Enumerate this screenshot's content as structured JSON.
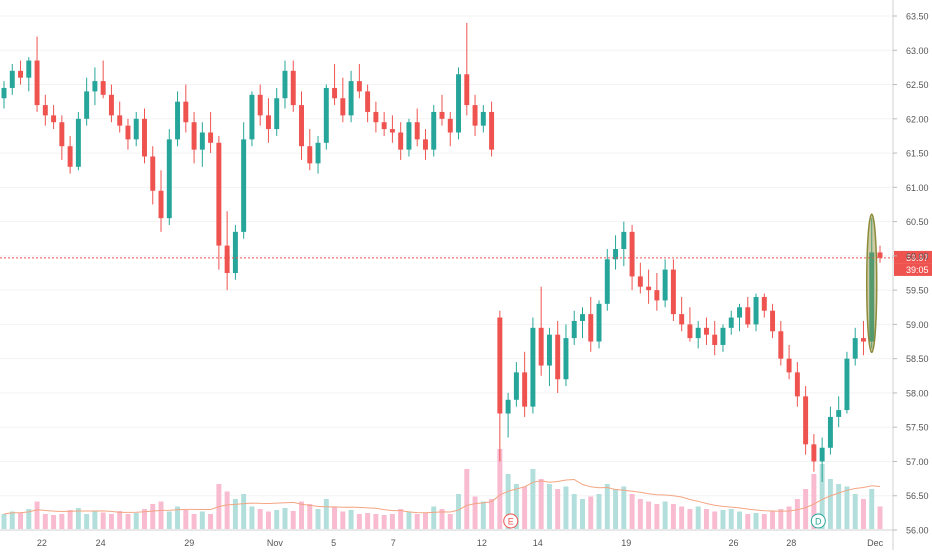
{
  "chart_data": {
    "type": "candlestick",
    "y_axis": {
      "position": "right",
      "ylim": [
        55.8,
        63.7
      ],
      "tick_labels": [
        "56.00",
        "56.50",
        "57.00",
        "57.50",
        "58.00",
        "58.50",
        "59.00",
        "59.50",
        "60.00",
        "60.50",
        "61.00",
        "61.50",
        "62.00",
        "62.50",
        "63.00",
        "63.50"
      ]
    },
    "x_axis": {
      "tick_labels": [
        "22",
        "24",
        "29",
        "Nov",
        "5",
        "7",
        "12",
        "14",
        "19",
        "26",
        "28",
        "Dec"
      ]
    },
    "price_line": {
      "value": 59.97,
      "label": "59.97",
      "countdown": "39:05"
    },
    "event_markers": [
      {
        "letter": "E",
        "near": "12"
      },
      {
        "letter": "D",
        "near": "28"
      }
    ],
    "highlight": "ellipse around the last large bullish candle",
    "colors": {
      "up": "#26a69a",
      "down": "#ef5350",
      "volume_up": "#b2dfdb",
      "volume_down": "#f8bbd0",
      "volume_ma": "#f4a582",
      "price_line": "#ef5350",
      "axis_text": "#555555",
      "highlight": "#8d8b3a"
    },
    "candles": [
      [
        62.3,
        62.55,
        62.15,
        62.45
      ],
      [
        62.45,
        62.8,
        62.35,
        62.7
      ],
      [
        62.7,
        62.85,
        62.5,
        62.6
      ],
      [
        62.6,
        62.9,
        62.4,
        62.85
      ],
      [
        62.85,
        63.2,
        62.1,
        62.2
      ],
      [
        62.2,
        62.35,
        61.9,
        62.05
      ],
      [
        62.05,
        62.2,
        61.85,
        61.95
      ],
      [
        61.95,
        62.05,
        61.4,
        61.6
      ],
      [
        61.6,
        61.75,
        61.2,
        61.3
      ],
      [
        61.3,
        62.1,
        61.25,
        62.0
      ],
      [
        62.0,
        62.6,
        61.9,
        62.4
      ],
      [
        62.4,
        62.75,
        62.2,
        62.55
      ],
      [
        62.55,
        62.85,
        62.3,
        62.35
      ],
      [
        62.35,
        62.5,
        61.95,
        62.05
      ],
      [
        62.05,
        62.25,
        61.8,
        61.9
      ],
      [
        61.9,
        62.0,
        61.55,
        61.7
      ],
      [
        61.7,
        62.1,
        61.6,
        62.0
      ],
      [
        62.0,
        62.15,
        61.35,
        61.45
      ],
      [
        61.45,
        61.6,
        60.75,
        60.95
      ],
      [
        60.95,
        61.25,
        60.35,
        60.55
      ],
      [
        60.55,
        61.85,
        60.45,
        61.7
      ],
      [
        61.7,
        62.4,
        61.6,
        62.25
      ],
      [
        62.25,
        62.5,
        61.8,
        61.95
      ],
      [
        61.95,
        62.1,
        61.35,
        61.55
      ],
      [
        61.55,
        61.95,
        61.3,
        61.8
      ],
      [
        61.8,
        62.1,
        61.5,
        61.65
      ],
      [
        61.65,
        61.75,
        59.8,
        60.15
      ],
      [
        60.15,
        60.65,
        59.5,
        59.75
      ],
      [
        59.75,
        60.45,
        59.65,
        60.35
      ],
      [
        60.35,
        61.95,
        60.25,
        61.7
      ],
      [
        61.7,
        62.4,
        61.6,
        62.35
      ],
      [
        62.35,
        62.5,
        61.9,
        62.05
      ],
      [
        62.05,
        62.3,
        61.65,
        61.85
      ],
      [
        61.85,
        62.45,
        61.75,
        62.3
      ],
      [
        62.3,
        62.85,
        62.15,
        62.7
      ],
      [
        62.7,
        62.85,
        62.1,
        62.2
      ],
      [
        62.2,
        62.4,
        61.4,
        61.6
      ],
      [
        61.6,
        61.85,
        61.25,
        61.35
      ],
      [
        61.35,
        61.75,
        61.2,
        61.65
      ],
      [
        61.65,
        62.5,
        61.55,
        62.45
      ],
      [
        62.45,
        62.8,
        62.2,
        62.3
      ],
      [
        62.3,
        62.6,
        61.95,
        62.05
      ],
      [
        62.05,
        62.7,
        61.95,
        62.55
      ],
      [
        62.55,
        62.8,
        62.3,
        62.4
      ],
      [
        62.4,
        62.5,
        61.95,
        62.1
      ],
      [
        62.1,
        62.25,
        61.8,
        61.95
      ],
      [
        61.95,
        62.1,
        61.75,
        61.85
      ],
      [
        61.85,
        62.05,
        61.65,
        61.8
      ],
      [
        61.8,
        61.95,
        61.4,
        61.55
      ],
      [
        61.55,
        62.0,
        61.45,
        61.95
      ],
      [
        61.95,
        62.15,
        61.6,
        61.7
      ],
      [
        61.7,
        61.85,
        61.4,
        61.55
      ],
      [
        61.55,
        62.2,
        61.45,
        62.1
      ],
      [
        62.1,
        62.35,
        61.9,
        62.0
      ],
      [
        62.0,
        62.1,
        61.6,
        61.8
      ],
      [
        61.8,
        62.75,
        61.7,
        62.65
      ],
      [
        62.65,
        63.4,
        62.05,
        62.2
      ],
      [
        62.2,
        62.35,
        61.75,
        61.9
      ],
      [
        61.9,
        62.2,
        61.8,
        62.1
      ],
      [
        62.1,
        62.25,
        61.45,
        61.55
      ],
      [
        59.1,
        59.2,
        57.0,
        57.7
      ],
      [
        57.7,
        58.0,
        57.35,
        57.9
      ],
      [
        57.9,
        58.45,
        57.8,
        58.3
      ],
      [
        58.3,
        58.6,
        57.65,
        57.8
      ],
      [
        57.8,
        59.1,
        57.7,
        58.95
      ],
      [
        58.95,
        59.55,
        58.25,
        58.4
      ],
      [
        58.4,
        58.95,
        58.1,
        58.85
      ],
      [
        58.85,
        59.05,
        58.0,
        58.2
      ],
      [
        58.2,
        59.0,
        58.1,
        58.8
      ],
      [
        58.8,
        59.2,
        58.7,
        59.05
      ],
      [
        59.05,
        59.25,
        58.8,
        59.15
      ],
      [
        59.15,
        59.4,
        58.6,
        58.75
      ],
      [
        58.75,
        59.35,
        58.65,
        59.3
      ],
      [
        59.3,
        60.1,
        59.2,
        59.95
      ],
      [
        59.95,
        60.3,
        59.8,
        60.1
      ],
      [
        60.1,
        60.5,
        59.85,
        60.35
      ],
      [
        60.35,
        60.45,
        59.5,
        59.7
      ],
      [
        59.7,
        59.9,
        59.45,
        59.55
      ],
      [
        59.55,
        59.8,
        59.3,
        59.5
      ],
      [
        59.5,
        59.75,
        59.2,
        59.35
      ],
      [
        59.35,
        59.95,
        59.25,
        59.8
      ],
      [
        59.8,
        59.95,
        59.05,
        59.15
      ],
      [
        59.15,
        59.4,
        58.9,
        59.0
      ],
      [
        59.0,
        59.25,
        58.75,
        58.8
      ],
      [
        58.8,
        59.05,
        58.65,
        58.95
      ],
      [
        58.95,
        59.1,
        58.7,
        58.85
      ],
      [
        58.85,
        59.05,
        58.55,
        58.7
      ],
      [
        58.7,
        59.0,
        58.6,
        58.95
      ],
      [
        58.95,
        59.2,
        58.85,
        59.1
      ],
      [
        59.1,
        59.3,
        58.9,
        59.25
      ],
      [
        59.25,
        59.4,
        58.95,
        59.0
      ],
      [
        59.0,
        59.45,
        58.9,
        59.4
      ],
      [
        59.4,
        59.45,
        59.1,
        59.2
      ],
      [
        59.2,
        59.3,
        58.8,
        58.9
      ],
      [
        58.9,
        59.05,
        58.4,
        58.5
      ],
      [
        58.5,
        58.7,
        58.2,
        58.3
      ],
      [
        58.3,
        58.45,
        57.8,
        57.95
      ],
      [
        57.95,
        58.1,
        57.1,
        57.25
      ],
      [
        57.25,
        57.4,
        56.85,
        57.0
      ],
      [
        57.0,
        57.35,
        56.7,
        57.2
      ],
      [
        57.2,
        57.8,
        57.1,
        57.65
      ],
      [
        57.65,
        57.95,
        57.5,
        57.75
      ],
      [
        57.75,
        58.6,
        57.7,
        58.5
      ],
      [
        58.5,
        58.95,
        58.4,
        58.8
      ],
      [
        58.8,
        59.05,
        58.55,
        58.75
      ],
      [
        58.75,
        60.55,
        58.65,
        60.05
      ],
      [
        60.05,
        60.15,
        59.9,
        59.97
      ]
    ],
    "volumes": [
      0.3,
      0.35,
      0.32,
      0.4,
      0.55,
      0.3,
      0.28,
      0.3,
      0.38,
      0.42,
      0.3,
      0.35,
      0.33,
      0.3,
      0.36,
      0.3,
      0.32,
      0.4,
      0.5,
      0.55,
      0.35,
      0.45,
      0.38,
      0.3,
      0.35,
      0.3,
      0.9,
      0.75,
      0.6,
      0.7,
      0.45,
      0.4,
      0.35,
      0.38,
      0.42,
      0.36,
      0.55,
      0.5,
      0.4,
      0.6,
      0.45,
      0.35,
      0.38,
      0.3,
      0.32,
      0.3,
      0.28,
      0.3,
      0.4,
      0.35,
      0.3,
      0.32,
      0.45,
      0.4,
      0.3,
      0.7,
      1.2,
      0.65,
      0.55,
      0.6,
      1.6,
      1.1,
      0.9,
      0.85,
      1.2,
      1.0,
      0.9,
      0.8,
      0.85,
      0.7,
      0.6,
      0.65,
      0.7,
      0.9,
      0.8,
      0.85,
      0.7,
      0.6,
      0.55,
      0.5,
      0.55,
      0.5,
      0.45,
      0.4,
      0.45,
      0.4,
      0.35,
      0.38,
      0.4,
      0.35,
      0.3,
      0.32,
      0.3,
      0.35,
      0.4,
      0.45,
      0.6,
      0.8,
      1.1,
      1.3,
      1.0,
      0.9,
      0.85,
      0.7,
      0.6,
      0.8,
      0.45
    ]
  }
}
